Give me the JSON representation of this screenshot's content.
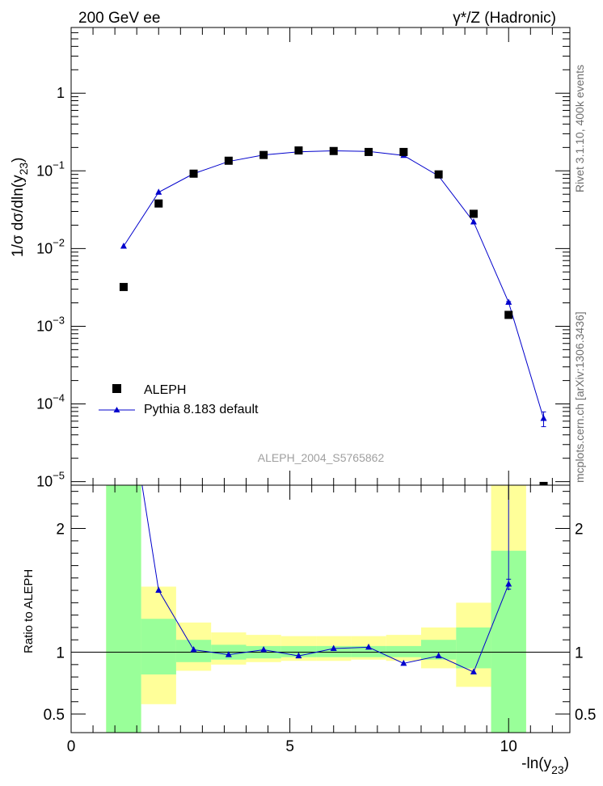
{
  "header": {
    "left": "200 GeV ee",
    "right": "γ*/Z (Hadronic)"
  },
  "side_labels": {
    "top": "Rivet 3.1.10, 400k events",
    "bottom": "mcplots.cern.ch [arXiv:1306.3436]"
  },
  "watermark": "ALEPH_2004_S5765862",
  "colors": {
    "data": "#000000",
    "mc": "#0000cc",
    "band_inner": "#99ff99",
    "band_outer": "#ffff99"
  },
  "chart_data": [
    {
      "type": "scatter",
      "ylabel_main": "1/σ dσ/dln(y",
      "ylabel_sub": "23",
      "ylabel_close": ")",
      "yscale": "log",
      "xlim": [
        0,
        11.4
      ],
      "ylim": [
        9e-06,
        7
      ],
      "ytick_labels": [
        {
          "base": "10",
          "exp": "−5",
          "value": 1e-05
        },
        {
          "base": "10",
          "exp": "−4",
          "value": 0.0001
        },
        {
          "base": "10",
          "exp": "−3",
          "value": 0.001
        },
        {
          "base": "10",
          "exp": "−2",
          "value": 0.01
        },
        {
          "base": "10",
          "exp": "−1",
          "value": 0.1
        },
        {
          "base": "1",
          "exp": "",
          "value": 1
        }
      ],
      "legend": [
        {
          "label": "ALEPH",
          "marker": "square"
        },
        {
          "label": "Pythia 8.183 default",
          "marker": "triangle-line"
        }
      ],
      "legend_position": "bottom-left",
      "series": [
        {
          "name": "ALEPH",
          "x": [
            1.2,
            2.0,
            2.8,
            3.6,
            4.4,
            5.2,
            6.0,
            6.8,
            7.6,
            8.4,
            9.2,
            10.0,
            10.8
          ],
          "values": [
            0.0032,
            0.038,
            0.092,
            0.135,
            0.16,
            0.183,
            0.18,
            0.175,
            0.175,
            0.09,
            0.028,
            0.0014,
            8.8e-06
          ]
        },
        {
          "name": "Pythia 8.183 default",
          "x": [
            1.2,
            2.0,
            2.8,
            3.6,
            4.4,
            5.2,
            6.0,
            6.8,
            7.6,
            8.4,
            9.2,
            10.0,
            10.8
          ],
          "values": [
            0.0107,
            0.053,
            0.092,
            0.132,
            0.16,
            0.176,
            0.181,
            0.178,
            0.158,
            0.086,
            0.022,
            0.00203,
            6.5e-05
          ],
          "errors": [
            0,
            0,
            0,
            0,
            0,
            0,
            0,
            0,
            0,
            0,
            0,
            5e-05,
            1.4e-05
          ]
        }
      ]
    },
    {
      "type": "line",
      "ylabel": "Ratio to ALEPH",
      "xlabel_main": "-ln(y",
      "xlabel_sub": "23",
      "xlabel_close": ")",
      "xlim": [
        0,
        11.4
      ],
      "ylim": [
        0.35,
        2.35
      ],
      "xticks": [
        0,
        5,
        10
      ],
      "yticks": [
        0.5,
        1,
        2
      ],
      "yticks_minor": [
        0.6,
        0.7,
        0.8,
        0.9,
        1.1,
        1.2,
        1.3,
        1.4,
        1.5,
        1.6,
        1.7,
        1.8,
        1.9,
        2.1,
        2.2,
        2.3
      ],
      "reference_line": 1,
      "bins": [
        {
          "x0": 0.8,
          "x1": 1.6,
          "inner": [
            0.35,
            2.35
          ],
          "outer": [
            0.35,
            2.35
          ]
        },
        {
          "x0": 1.6,
          "x1": 2.4,
          "inner": [
            0.82,
            1.27
          ],
          "outer": [
            0.58,
            1.53
          ]
        },
        {
          "x0": 2.4,
          "x1": 3.2,
          "inner": [
            0.92,
            1.1
          ],
          "outer": [
            0.85,
            1.24
          ]
        },
        {
          "x0": 3.2,
          "x1": 4.0,
          "inner": [
            0.94,
            1.06
          ],
          "outer": [
            0.9,
            1.16
          ]
        },
        {
          "x0": 4.0,
          "x1": 4.8,
          "inner": [
            0.95,
            1.05
          ],
          "outer": [
            0.92,
            1.14
          ]
        },
        {
          "x0": 4.8,
          "x1": 5.6,
          "inner": [
            0.96,
            1.05
          ],
          "outer": [
            0.93,
            1.13
          ]
        },
        {
          "x0": 5.6,
          "x1": 6.4,
          "inner": [
            0.96,
            1.05
          ],
          "outer": [
            0.93,
            1.13
          ]
        },
        {
          "x0": 6.4,
          "x1": 7.2,
          "inner": [
            0.96,
            1.05
          ],
          "outer": [
            0.94,
            1.13
          ]
        },
        {
          "x0": 7.2,
          "x1": 8.0,
          "inner": [
            0.96,
            1.05
          ],
          "outer": [
            0.93,
            1.14
          ]
        },
        {
          "x0": 8.0,
          "x1": 8.8,
          "inner": [
            0.94,
            1.1
          ],
          "outer": [
            0.87,
            1.2
          ]
        },
        {
          "x0": 8.8,
          "x1": 9.6,
          "inner": [
            0.87,
            1.2
          ],
          "outer": [
            0.72,
            1.4
          ]
        },
        {
          "x0": 9.6,
          "x1": 10.4,
          "inner": [
            0.35,
            1.82
          ],
          "outer": [
            0.35,
            2.35
          ]
        }
      ],
      "series": [
        {
          "name": "Pythia 8.183 default",
          "x": [
            1.2,
            2.0,
            2.8,
            3.6,
            4.4,
            5.2,
            6.0,
            6.8,
            7.6,
            8.4,
            9.2,
            10.0
          ],
          "values": [
            3.3,
            1.5,
            1.02,
            0.98,
            1.02,
            0.97,
            1.03,
            1.04,
            0.91,
            0.97,
            0.84,
            1.55
          ],
          "errors": [
            0,
            0,
            0,
            0,
            0,
            0,
            0,
            0,
            0,
            0,
            0,
            0.04
          ]
        }
      ]
    }
  ]
}
